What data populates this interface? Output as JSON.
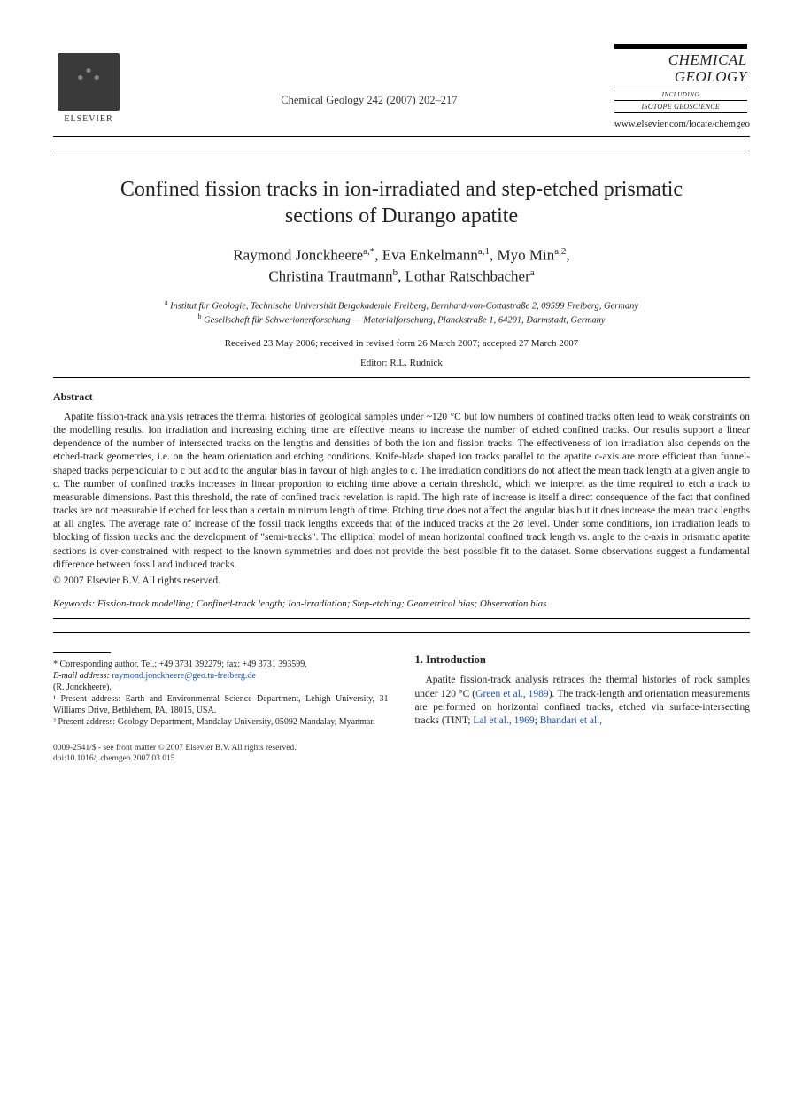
{
  "publisher": {
    "name": "ELSEVIER",
    "journal_ref": "Chemical Geology 242 (2007) 202–217",
    "journal_cover_title": "CHEMICAL GEOLOGY",
    "journal_cover_including": "INCLUDING",
    "journal_cover_sub": "ISOTOPE GEOSCIENCE",
    "journal_url": "www.elsevier.com/locate/chemgeo"
  },
  "article": {
    "title": "Confined fission tracks in ion-irradiated and step-etched prismatic sections of Durango apatite",
    "authors_line1": "Raymond Jonckheere",
    "authors_sup1": "a,*",
    "authors_line1b": ", Eva Enkelmann",
    "authors_sup1b": "a,1",
    "authors_line1c": ", Myo Min",
    "authors_sup1c": "a,2",
    "authors_line1d": ",",
    "authors_line2a": "Christina Trautmann",
    "authors_sup2a": "b",
    "authors_line2b": ", Lothar Ratschbacher",
    "authors_sup2b": "a",
    "affil_a_sup": "a",
    "affil_a": " Institut für Geologie, Technische Universität Bergakademie Freiberg, Bernhard-von-Cottastraße 2, 09599 Freiberg, Germany",
    "affil_b_sup": "b",
    "affil_b": " Gesellschaft für Schwerionenforschung — Materialforschung, Planckstraße 1, 64291, Darmstadt, Germany",
    "dates": "Received 23 May 2006; received in revised form 26 March 2007; accepted 27 March 2007",
    "editor": "Editor: R.L. Rudnick"
  },
  "abstract": {
    "heading": "Abstract",
    "body": "Apatite fission-track analysis retraces the thermal histories of geological samples under ~120 °C but low numbers of confined tracks often lead to weak constraints on the modelling results. Ion irradiation and increasing etching time are effective means to increase the number of etched confined tracks. Our results support a linear dependence of the number of intersected tracks on the lengths and densities of both the ion and fission tracks. The effectiveness of ion irradiation also depends on the etched-track geometries, i.e. on the beam orientation and etching conditions. Knife-blade shaped ion tracks parallel to the apatite c-axis are more efficient than funnel-shaped tracks perpendicular to c but add to the angular bias in favour of high angles to c. The irradiation conditions do not affect the mean track length at a given angle to c. The number of confined tracks increases in linear proportion to etching time above a certain threshold, which we interpret as the time required to etch a track to measurable dimensions. Past this threshold, the rate of confined track revelation is rapid. The high rate of increase is itself a direct consequence of the fact that confined tracks are not measurable if etched for less than a certain minimum length of time. Etching time does not affect the angular bias but it does increase the mean track lengths at all angles. The average rate of increase of the fossil track lengths exceeds that of the induced tracks at the 2σ level. Under some conditions, ion irradiation leads to blocking of fission tracks and the development of \"semi-tracks\". The elliptical model of mean horizontal confined track length vs. angle to the c-axis in prismatic apatite sections is over-constrained with respect to the known symmetries and does not provide the best possible fit to the dataset. Some observations suggest a fundamental difference between fossil and induced tracks.",
    "copyright": "© 2007 Elsevier B.V. All rights reserved."
  },
  "keywords": {
    "label": "Keywords:",
    "text": " Fission-track modelling; Confined-track length; Ion-irradiation; Step-etching; Geometrical bias; Observation bias"
  },
  "footnotes": {
    "corr": "* Corresponding author. Tel.: +49 3731 392279; fax: +49 3731 393599.",
    "email_label": "E-mail address:",
    "email": "raymond.jonckheere@geo.tu-freiberg.de",
    "email_tail": "(R. Jonckheere).",
    "fn1": "¹ Present address: Earth and Environmental Science Department, Lehigh University, 31 Williams Drive, Bethlehem, PA, 18015, USA.",
    "fn2": "² Present address: Geology Department, Mandalay University, 05092 Mandalay, Myanmar."
  },
  "intro": {
    "heading": "1. Introduction",
    "body_part1": "Apatite fission-track analysis retraces the thermal histories of rock samples under 120 °C (",
    "cite1": "Green et al., 1989",
    "body_part2": "). The track-length and orientation measurements are performed on horizontal confined tracks, etched via surface-intersecting tracks (TINT; ",
    "cite2": "Lal et al., 1969",
    "body_part3": "; ",
    "cite3": "Bhandari et al.,"
  },
  "bottom": {
    "line1": "0009-2541/$ - see front matter © 2007 Elsevier B.V. All rights reserved.",
    "line2": "doi:10.1016/j.chemgeo.2007.03.015"
  }
}
